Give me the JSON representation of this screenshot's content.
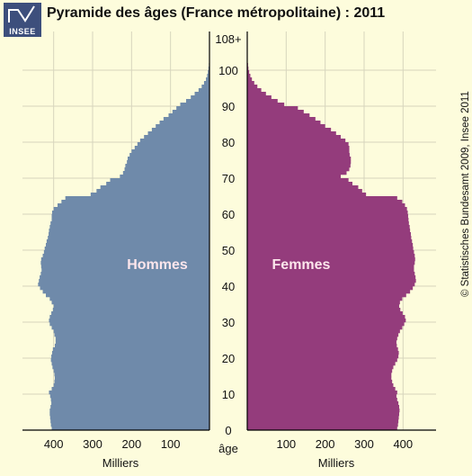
{
  "header": {
    "title": "Pyramide des âges (France métropolitaine) : 2011",
    "logo_text": "INSEE",
    "credit": "© Statistisches Bundesamt 2009, Insee 2011"
  },
  "colors": {
    "background": "#fdfcdc",
    "hommes": "#6f8aaa",
    "femmes": "#943c7c",
    "grid": "#d7d5bd",
    "logo": "#3d4f7c"
  },
  "chart_data": {
    "type": "bar",
    "orientation": "horizontal-pyramid",
    "title": "Pyramide des âges (France métropolitaine) : 2011",
    "xlabel": "Milliers",
    "ylabel": "âge",
    "age_ticks": [
      "0",
      "10",
      "20",
      "30",
      "40",
      "50",
      "60",
      "70",
      "80",
      "90",
      "100",
      "108+"
    ],
    "x_ticks_left": [
      "400",
      "300",
      "200",
      "100"
    ],
    "x_ticks_right": [
      "100",
      "200",
      "300",
      "400"
    ],
    "xlim": [
      0,
      480
    ],
    "ylim": [
      0,
      108
    ],
    "grid": true,
    "series": [
      {
        "name": "Hommes",
        "values": [
          405,
          407,
          408,
          409,
          410,
          410,
          408,
          406,
          407,
          409,
          412,
          405,
          400,
          398,
          397,
          398,
          400,
          403,
          405,
          407,
          406,
          404,
          402,
          397,
          395,
          395,
          398,
          400,
          405,
          410,
          412,
          410,
          406,
          402,
          400,
          405,
          410,
          420,
          428,
          435,
          440,
          438,
          436,
          433,
          431,
          432,
          433,
          432,
          428,
          425,
          423,
          420,
          418,
          415,
          413,
          412,
          410,
          408,
          405,
          405,
          404,
          400,
          390,
          380,
          370,
          305,
          290,
          280,
          265,
          255,
          230,
          222,
          218,
          216,
          212,
          210,
          205,
          200,
          192,
          185,
          178,
          168,
          158,
          148,
          138,
          128,
          118,
          105,
          95,
          85,
          75,
          60,
          48,
          38,
          28,
          20,
          14,
          9,
          6,
          4,
          2.5,
          1.5,
          1,
          0.5,
          0.3,
          0.2,
          0.1,
          0.1,
          0.1
        ]
      },
      {
        "name": "Femmes",
        "values": [
          385,
          387,
          388,
          389,
          390,
          391,
          390,
          388,
          385,
          383,
          385,
          380,
          375,
          372,
          370,
          370,
          372,
          375,
          380,
          385,
          388,
          389,
          387,
          384,
          383,
          385,
          388,
          392,
          398,
          403,
          407,
          405,
          399,
          393,
          390,
          392,
          398,
          408,
          418,
          425,
          430,
          433,
          432,
          430,
          428,
          428,
          430,
          431,
          430,
          428,
          426,
          425,
          423,
          421,
          420,
          418,
          417,
          415,
          414,
          413,
          412,
          410,
          405,
          398,
          385,
          305,
          295,
          285,
          270,
          260,
          240,
          255,
          262,
          265,
          266,
          266,
          263,
          262,
          262,
          260,
          252,
          240,
          228,
          215,
          200,
          188,
          175,
          160,
          145,
          130,
          95,
          78,
          62,
          48,
          36,
          26,
          18,
          12,
          8,
          5,
          3,
          2,
          1.2,
          0.7,
          0.4,
          0.2,
          0.1,
          0.1,
          0.1
        ]
      }
    ],
    "annotations": [
      "Hommes",
      "Femmes"
    ]
  }
}
